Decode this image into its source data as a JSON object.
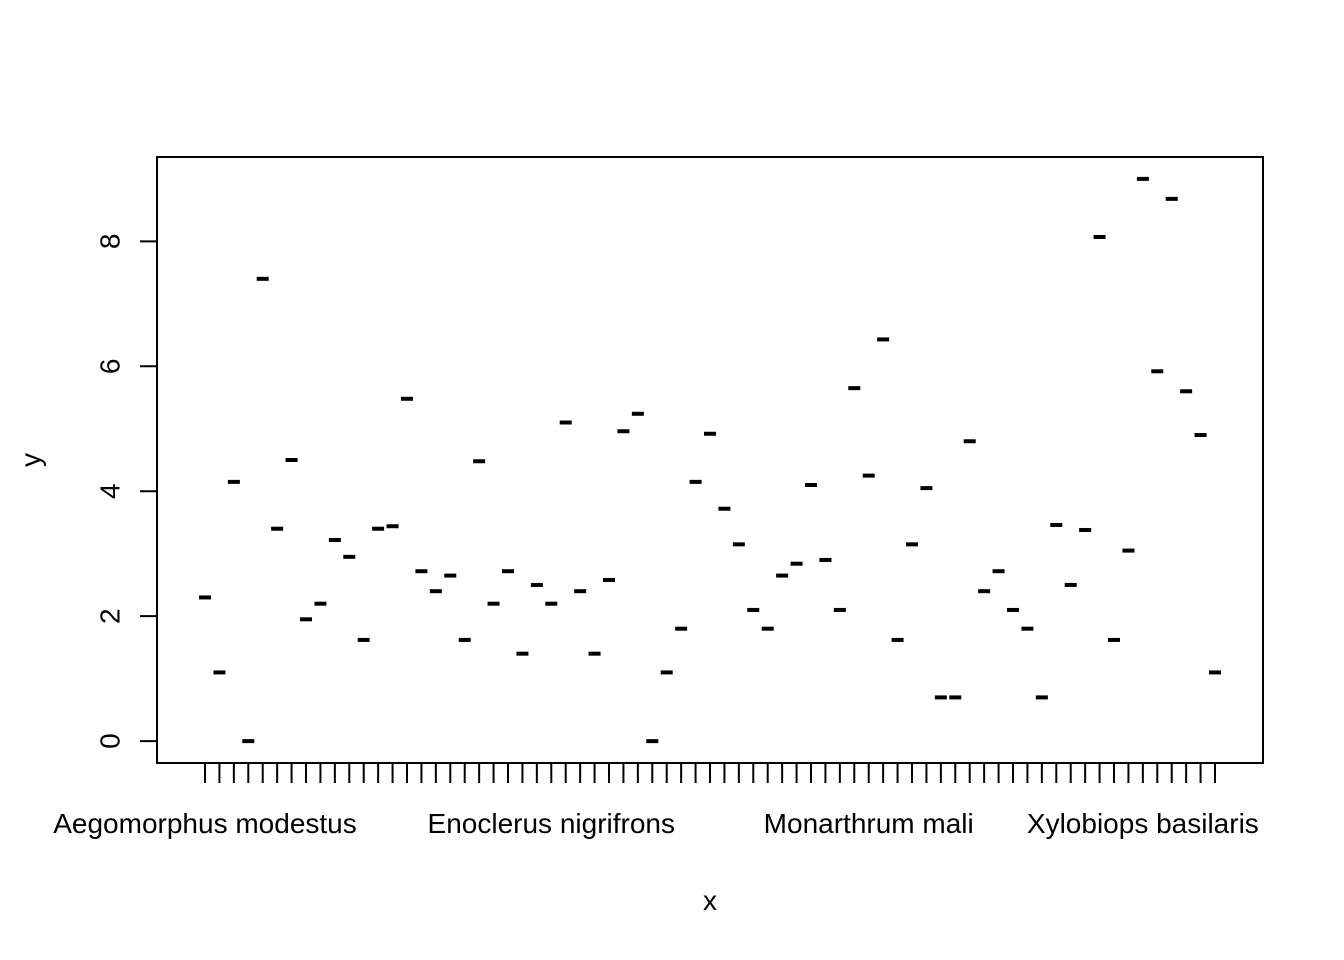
{
  "chart_data": {
    "type": "scatter",
    "xlabel": "x",
    "ylabel": "y",
    "ylim": [
      -0.35,
      9.35
    ],
    "y_ticks": [
      "0",
      "2",
      "4",
      "6",
      "8"
    ],
    "x_tick_labels": [
      {
        "index": 0,
        "text": "Aegomorphus modestus"
      },
      {
        "index": 24,
        "text": "Enoclerus nigrifrons"
      },
      {
        "index": 46,
        "text": "Monarthrum mali"
      },
      {
        "index": 65,
        "text": "Xylobiops basilaris"
      }
    ],
    "category_count": 71,
    "values": [
      2.3,
      1.1,
      4.15,
      0.0,
      7.4,
      3.4,
      4.5,
      1.95,
      2.2,
      3.22,
      2.95,
      1.62,
      3.4,
      3.44,
      5.48,
      2.72,
      2.4,
      2.65,
      1.62,
      4.48,
      2.2,
      2.72,
      1.4,
      2.5,
      2.2,
      5.1,
      2.4,
      1.4,
      2.58,
      4.96,
      5.24,
      0.0,
      1.1,
      1.8,
      4.15,
      4.92,
      3.72,
      3.15,
      2.1,
      1.8,
      2.65,
      2.84,
      4.1,
      2.9,
      2.1,
      5.65,
      4.25,
      6.43,
      1.62,
      3.15,
      4.05,
      0.7,
      0.7,
      4.8,
      2.4,
      2.72,
      2.1,
      1.8,
      0.7,
      3.46,
      2.5,
      3.38,
      8.07,
      1.62,
      3.05,
      9.0,
      5.92,
      8.68,
      5.6,
      4.9,
      1.1
    ]
  }
}
